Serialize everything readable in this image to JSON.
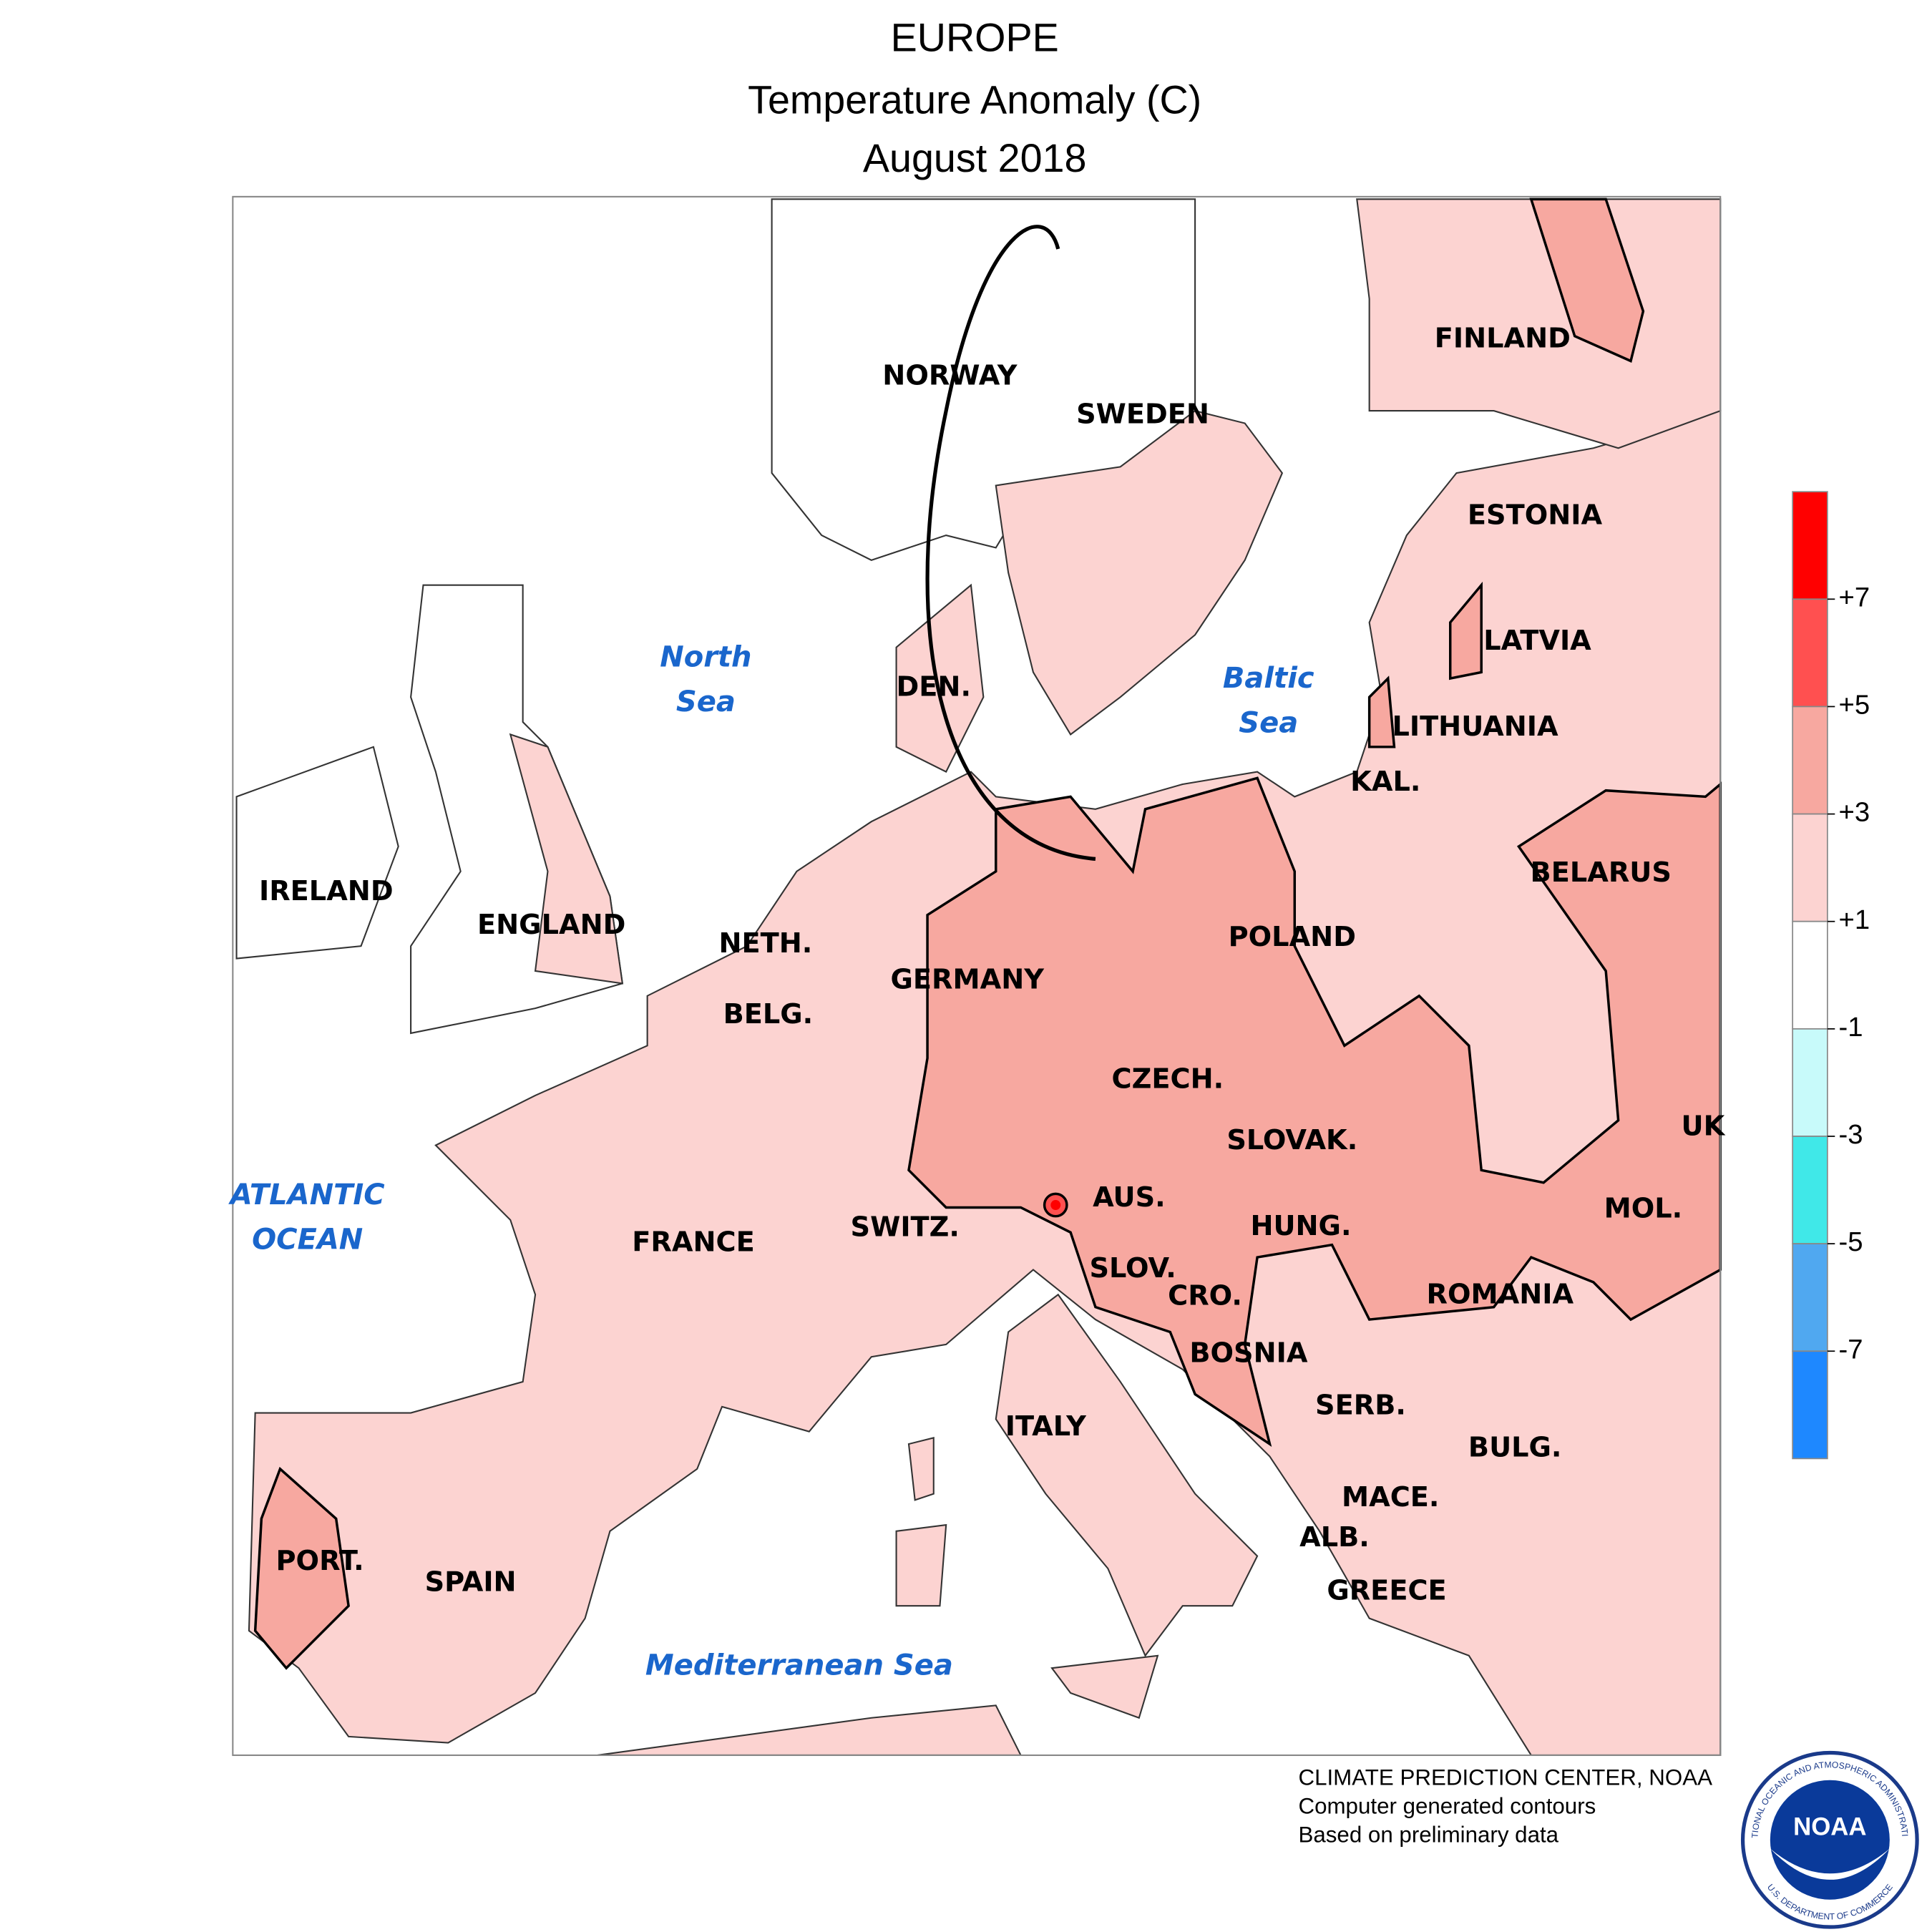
{
  "title": {
    "region": "EUROPE",
    "variable": "Temperature Anomaly (C)",
    "period": "August 2018"
  },
  "map_labels": {
    "countries": [
      "FINLAND",
      "NORWAY",
      "SWEDEN",
      "ESTONIA",
      "LATVIA",
      "LITHUANIA",
      "DEN.",
      "KAL.",
      "IRELAND",
      "ENGLAND",
      "NETH.",
      "GERMANY",
      "POLAND",
      "BELARUS",
      "BELG.",
      "CZECH.",
      "SLOVAK.",
      "UK",
      "AUS.",
      "SWITZ.",
      "FRANCE",
      "HUNG.",
      "MOL.",
      "SLOV.",
      "CRO.",
      "ROMANIA",
      "BOSNIA",
      "SERB.",
      "ITALY",
      "BULG.",
      "MACE.",
      "ALB.",
      "PORT.",
      "SPAIN",
      "GREECE"
    ],
    "seas": [
      [
        "North",
        "Sea"
      ],
      [
        "Baltic",
        "Sea"
      ],
      [
        "ATLANTIC",
        "OCEAN"
      ],
      [
        "Mediterranean Sea"
      ]
    ]
  },
  "legend": {
    "colors": [
      "#ff0000",
      "#ff5050",
      "#f7a8a0",
      "#fcd3d1",
      "#ffffff",
      "#c8fafa",
      "#40e8e8",
      "#50a8f0",
      "#1e88ff"
    ],
    "ticks": [
      {
        "value": 7,
        "label": "+7"
      },
      {
        "value": 5,
        "label": "+5"
      },
      {
        "value": 3,
        "label": "+3"
      },
      {
        "value": 1,
        "label": "+1"
      },
      -1,
      -3,
      -5,
      -7
    ]
  },
  "footer": [
    "CLIMATE PREDICTION CENTER, NOAA",
    "Computer generated contours",
    "Based on preliminary data"
  ],
  "logo": {
    "name": "NOAA",
    "ring_top": "NATIONAL OCEANIC AND ATMOSPHERIC ADMINISTRATION",
    "ring_bottom": "U.S. DEPARTMENT OF COMMERCE"
  }
}
